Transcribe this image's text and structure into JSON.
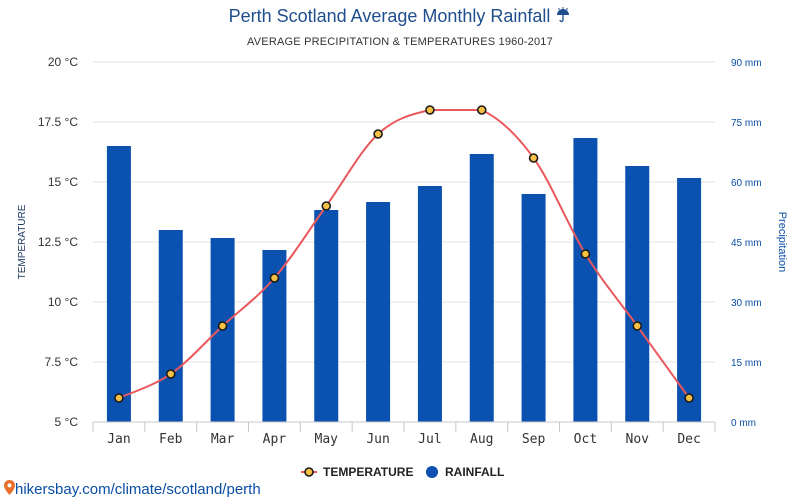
{
  "header": {
    "title": "Perth Scotland Average Monthly Rainfall",
    "title_icon": "umbrella-rain-icon",
    "subtitle": "AVERAGE PRECIPITATION & TEMPERATURES 1960-2017"
  },
  "source": {
    "text": "hikersbay.com/climate/scotland/perth",
    "icon": "location-pin-icon"
  },
  "colors": {
    "bar": "#0a51b0",
    "line": "#e8585c",
    "marker_fill": "#f5c043",
    "marker_stroke": "#1a1a1a",
    "grid": "#e6e6e6",
    "title": "#1f4e8c"
  },
  "chart_data": {
    "type": "bar+line",
    "title": "Perth Scotland Average Monthly Rainfall",
    "subtitle": "AVERAGE PRECIPITATION & TEMPERATURES 1960-2017",
    "categories": [
      "Jan",
      "Feb",
      "Mar",
      "Apr",
      "May",
      "Jun",
      "Jul",
      "Aug",
      "Sep",
      "Oct",
      "Nov",
      "Dec"
    ],
    "series": [
      {
        "name": "TEMPERATURE",
        "type": "line",
        "axis": "left",
        "unit": "°C",
        "values": [
          6,
          7,
          9,
          11,
          14,
          17,
          18,
          18,
          16,
          12,
          9,
          6
        ]
      },
      {
        "name": "RAINFALL",
        "type": "bar",
        "axis": "right",
        "unit": "mm",
        "values": [
          69,
          48,
          46,
          43,
          53,
          55,
          59,
          67,
          57,
          71,
          64,
          61
        ]
      }
    ],
    "y_left": {
      "label": "TEMPERATURE",
      "ylim": [
        5,
        20
      ],
      "ticks": [
        5,
        7.5,
        10,
        12.5,
        15,
        17.5,
        20
      ],
      "tick_labels": [
        "5 °C",
        "7.5 °C",
        "10 °C",
        "12.5 °C",
        "15 °C",
        "17.5 °C",
        "20 °C"
      ]
    },
    "y_right": {
      "label": "Precipitation",
      "ylim": [
        0,
        90
      ],
      "ticks": [
        0,
        15,
        30,
        45,
        60,
        75,
        90
      ],
      "tick_labels": [
        "0 mm",
        "15 mm",
        "30 mm",
        "45 mm",
        "60 mm",
        "75 mm",
        "90 mm"
      ]
    },
    "grid": true,
    "legend": {
      "position": "bottom-center",
      "items": [
        "TEMPERATURE",
        "RAINFALL"
      ]
    }
  }
}
